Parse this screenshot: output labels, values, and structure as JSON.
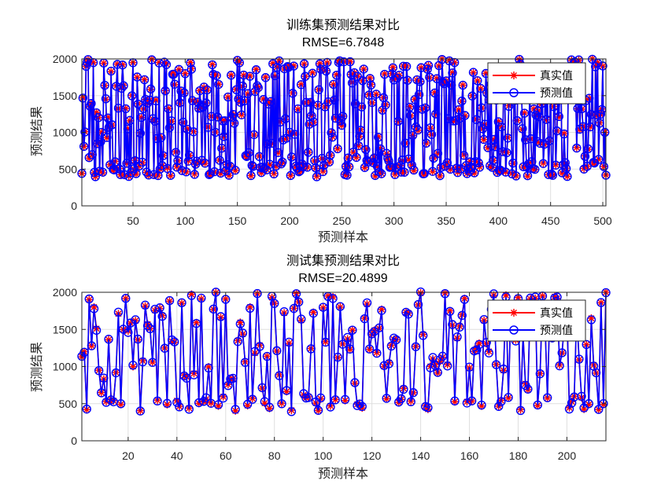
{
  "colors": {
    "real": "#ff0000",
    "pred": "#0000ff",
    "grid": "#dfdfdf",
    "axis": "#262626"
  },
  "legend": {
    "real_label": "真实值",
    "pred_label": "预测值",
    "placement": "top-right"
  },
  "chart_data": [
    {
      "type": "line",
      "title": "训练集预测结果对比",
      "subtitle": "RMSE=6.7848",
      "xlabel": "预测样本",
      "ylabel": "预测结果",
      "xlim": [
        1,
        503
      ],
      "ylim": [
        0,
        2000
      ],
      "xticks": [
        50,
        100,
        150,
        200,
        250,
        300,
        350,
        400,
        450,
        500
      ],
      "yticks": [
        0,
        500,
        1000,
        1500,
        2000
      ],
      "grid": true,
      "n": 503,
      "seed": 71,
      "series": [
        {
          "name": "真实值",
          "marker": "asterisk",
          "anchors": [
            [
              1,
              440
            ],
            [
              2,
              1470
            ],
            [
              3,
              810
            ],
            [
              4,
              1010
            ],
            [
              5,
              1900
            ],
            [
              6,
              1950
            ],
            [
              7,
              1990
            ],
            [
              8,
              650
            ],
            [
              9,
              1350
            ],
            [
              10,
              1400
            ],
            [
              11,
              700
            ],
            [
              12,
              1950
            ],
            [
              13,
              450
            ],
            [
              14,
              400
            ],
            [
              15,
              1270
            ],
            [
              16,
              850
            ],
            [
              17,
              1200
            ],
            [
              18,
              470
            ],
            [
              20,
              1000
            ],
            [
              22,
              1940
            ],
            [
              24,
              1450
            ],
            [
              28,
              560
            ],
            [
              30,
              1100
            ],
            [
              35,
              1930
            ],
            [
              40,
              1920
            ],
            [
              45,
              1050
            ],
            [
              50,
              1950
            ],
            [
              52,
              620
            ],
            [
              55,
              1390
            ],
            [
              60,
              1320
            ],
            [
              70,
              420
            ],
            [
              75,
              1950
            ],
            [
              80,
              1950
            ],
            [
              90,
              1650
            ],
            [
              100,
              1800
            ],
            [
              105,
              1950
            ],
            [
              120,
              1400
            ],
            [
              130,
              1780
            ],
            [
              150,
              1980
            ],
            [
              180,
              1390
            ],
            [
              200,
              1000
            ],
            [
              230,
              1860
            ],
            [
              260,
              1680
            ],
            [
              300,
              1720
            ],
            [
              320,
              1450
            ],
            [
              350,
              1700
            ],
            [
              353,
              1980
            ],
            [
              380,
              1700
            ],
            [
              400,
              1150
            ],
            [
              420,
              1990
            ],
            [
              450,
              1720
            ],
            [
              470,
              1980
            ],
            [
              490,
              2000
            ],
            [
              495,
              1950
            ],
            [
              500,
              1900
            ],
            [
              503,
              420
            ]
          ]
        },
        {
          "name": "预测值",
          "marker": "circle",
          "offset_note": "predictions track real values within a few units"
        }
      ]
    },
    {
      "type": "line",
      "title": "测试集预测结果对比",
      "subtitle": "RMSE=20.4899",
      "xlabel": "预测样本",
      "ylabel": "预测结果",
      "xlim": [
        1,
        216
      ],
      "ylim": [
        0,
        2000
      ],
      "xticks": [
        20,
        40,
        60,
        80,
        100,
        120,
        140,
        160,
        180,
        200
      ],
      "yticks": [
        0,
        500,
        1000,
        1500,
        2000
      ],
      "grid": true,
      "n": 216,
      "seed": 137,
      "series": [
        {
          "name": "真实值",
          "marker": "asterisk",
          "anchors": [
            [
              1,
              1130
            ],
            [
              2,
              1200
            ],
            [
              3,
              420
            ],
            [
              4,
              1900
            ],
            [
              5,
              1280
            ],
            [
              6,
              1800
            ],
            [
              7,
              1510
            ],
            [
              8,
              950
            ],
            [
              9,
              650
            ],
            [
              10,
              830
            ],
            [
              12,
              1360
            ],
            [
              15,
              920
            ],
            [
              18,
              1500
            ],
            [
              20,
              1480
            ],
            [
              22,
              1000
            ],
            [
              24,
              1360
            ],
            [
              30,
              1060
            ],
            [
              35,
              1250
            ],
            [
              37,
              1880
            ],
            [
              40,
              540
            ],
            [
              42,
              1850
            ],
            [
              48,
              1590
            ],
            [
              50,
              1910
            ],
            [
              52,
              560
            ],
            [
              55,
              1770
            ],
            [
              60,
              1910
            ],
            [
              70,
              1800
            ],
            [
              73,
              1980
            ],
            [
              80,
              1850
            ],
            [
              90,
              1870
            ],
            [
              100,
              1790
            ],
            [
              102,
              1950
            ],
            [
              110,
              1370
            ],
            [
              117,
              1650
            ],
            [
              125,
              1000
            ],
            [
              130,
              1360
            ],
            [
              135,
              1720
            ],
            [
              138,
              1270
            ],
            [
              140,
              1990
            ],
            [
              150,
              1990
            ],
            [
              152,
              1750
            ],
            [
              160,
              980
            ],
            [
              170,
              1960
            ],
            [
              175,
              1960
            ],
            [
              180,
              1930
            ],
            [
              190,
              1950
            ],
            [
              195,
              1940
            ],
            [
              200,
              1800
            ],
            [
              205,
              1090
            ],
            [
              210,
              1650
            ],
            [
              213,
              420
            ],
            [
              216,
              2000
            ]
          ]
        },
        {
          "name": "预测值",
          "marker": "circle",
          "offset_note": "predictions track real values within ~20 units"
        }
      ]
    }
  ]
}
